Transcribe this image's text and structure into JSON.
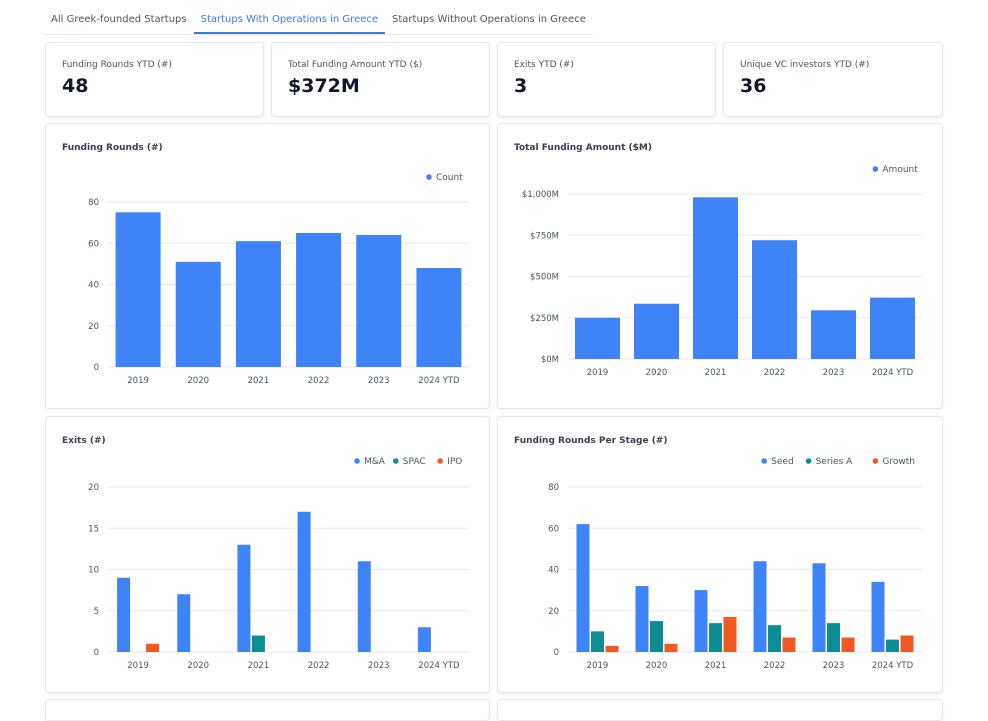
{
  "tabs": [
    {
      "label": "All Greek-founded Startups",
      "active": false
    },
    {
      "label": "Startups With Operations in Greece",
      "active": true
    },
    {
      "label": "Startups Without Operations in Greece",
      "active": false
    }
  ],
  "kpis": [
    {
      "label": "Funding Rounds YTD (#)",
      "value": "48"
    },
    {
      "label": "Total Funding Amount YTD ($)",
      "value": "$372M"
    },
    {
      "label": "Exits YTD (#)",
      "value": "3"
    },
    {
      "label": "Unique VC investors YTD (#)",
      "value": "36"
    }
  ],
  "colors": {
    "blue": "#3f83f8",
    "teal": "#0e8c94",
    "orange": "#f05a22",
    "accent": "#3b78e7"
  },
  "chart_data": [
    {
      "type": "bar",
      "title": "Funding Rounds (#)",
      "categories": [
        "2019",
        "2020",
        "2021",
        "2022",
        "2023",
        "2024 YTD"
      ],
      "series": [
        {
          "name": "Count",
          "values": [
            75,
            51,
            61,
            65,
            64,
            48
          ]
        }
      ],
      "ylim": [
        0,
        80
      ],
      "yticks": [
        "0",
        "20",
        "40",
        "60",
        "80"
      ],
      "legend": "top-right",
      "grid": true
    },
    {
      "type": "bar",
      "title": "Total Funding Amount ($M)",
      "categories": [
        "2019",
        "2020",
        "2021",
        "2022",
        "2023",
        "2024 YTD"
      ],
      "series": [
        {
          "name": "Amount",
          "values": [
            250,
            335,
            980,
            720,
            295,
            372
          ]
        }
      ],
      "ylim": [
        0,
        1000
      ],
      "yticks": [
        "$0M",
        "$250M",
        "$500M",
        "$750M",
        "$1,000M"
      ],
      "legend": "top-right",
      "grid": true
    },
    {
      "type": "bar",
      "title": "Exits (#)",
      "categories": [
        "2019",
        "2020",
        "2021",
        "2022",
        "2023",
        "2024 YTD"
      ],
      "series": [
        {
          "name": "M&A",
          "values": [
            9,
            7,
            13,
            17,
            11,
            3
          ]
        },
        {
          "name": "SPAC",
          "values": [
            0,
            0,
            2,
            0,
            0,
            0
          ]
        },
        {
          "name": "IPO",
          "values": [
            1,
            0,
            0,
            0,
            0,
            0
          ]
        }
      ],
      "ylim": [
        0,
        20
      ],
      "yticks": [
        "0",
        "5",
        "10",
        "15",
        "20"
      ],
      "legend": "top-right",
      "grid": true
    },
    {
      "type": "bar",
      "title": "Funding Rounds Per Stage (#)",
      "categories": [
        "2019",
        "2020",
        "2021",
        "2022",
        "2023",
        "2024 YTD"
      ],
      "series": [
        {
          "name": "Seed",
          "values": [
            62,
            32,
            30,
            44,
            43,
            34
          ]
        },
        {
          "name": "Series A",
          "values": [
            10,
            15,
            14,
            13,
            14,
            6
          ]
        },
        {
          "name": "Growth",
          "values": [
            3,
            4,
            17,
            7,
            7,
            8
          ]
        }
      ],
      "ylim": [
        0,
        80
      ],
      "yticks": [
        "0",
        "20",
        "40",
        "60",
        "80"
      ],
      "legend": "top-right",
      "grid": true
    }
  ]
}
